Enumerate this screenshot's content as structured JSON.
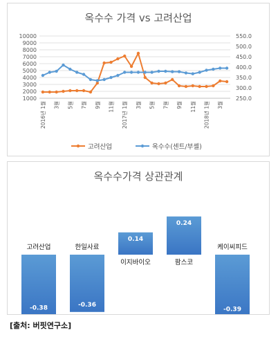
{
  "source": "[출처: 버핏연구소]",
  "chart_data": [
    {
      "type": "line",
      "title": "옥수수 가격 vs 고려산업",
      "left_axis": {
        "min": 1000,
        "max": 10000,
        "step": 1000,
        "ticks": [
          "1000",
          "2000",
          "3000",
          "4000",
          "5000",
          "6000",
          "7000",
          "8000",
          "9000",
          "10000"
        ]
      },
      "right_axis": {
        "min": 250,
        "max": 550,
        "step": 50,
        "ticks": [
          "250.0",
          "300.0",
          "350.0",
          "400.0",
          "450.0",
          "500.0",
          "550.0"
        ]
      },
      "x_labels": [
        "2016년 1월",
        "",
        "3월",
        "",
        "5월",
        "",
        "7월",
        "",
        "9월",
        "",
        "11월",
        "",
        "2017년 1월",
        "",
        "3월",
        "",
        "5월",
        "",
        "7월",
        "",
        "9월",
        "",
        "11월",
        "",
        "2018년 1월",
        "",
        "3월",
        ""
      ],
      "series": [
        {
          "name": "고려산업",
          "axis": "left",
          "color": "#ed7d31",
          "values": [
            1900,
            1900,
            1900,
            2000,
            2100,
            2100,
            2100,
            1900,
            3200,
            6100,
            6200,
            6700,
            7100,
            5600,
            7500,
            4000,
            3200,
            3100,
            3200,
            3700,
            2800,
            2700,
            2800,
            2700,
            2700,
            2800,
            3500,
            3400
          ]
        },
        {
          "name": "옥수수(센트/부셸)",
          "axis": "right",
          "color": "#5b9bd5",
          "values": [
            360,
            375,
            380,
            410,
            390,
            375,
            365,
            340,
            335,
            340,
            350,
            360,
            375,
            375,
            375,
            375,
            375,
            380,
            380,
            378,
            378,
            372,
            368,
            375,
            385,
            390,
            395,
            395
          ]
        }
      ],
      "legend_position": "bottom"
    },
    {
      "type": "bar",
      "title": "옥수수가격 상관관계",
      "categories": [
        "고려산업",
        "한일사료",
        "이지바이오",
        "팜스코",
        "케이씨피드"
      ],
      "values": [
        -0.38,
        -0.36,
        0.14,
        0.24,
        -0.39
      ],
      "value_labels": [
        "-0.38",
        "-0.36",
        "0.14",
        "0.24",
        "-0.39"
      ],
      "color": "#4a86d4"
    }
  ]
}
